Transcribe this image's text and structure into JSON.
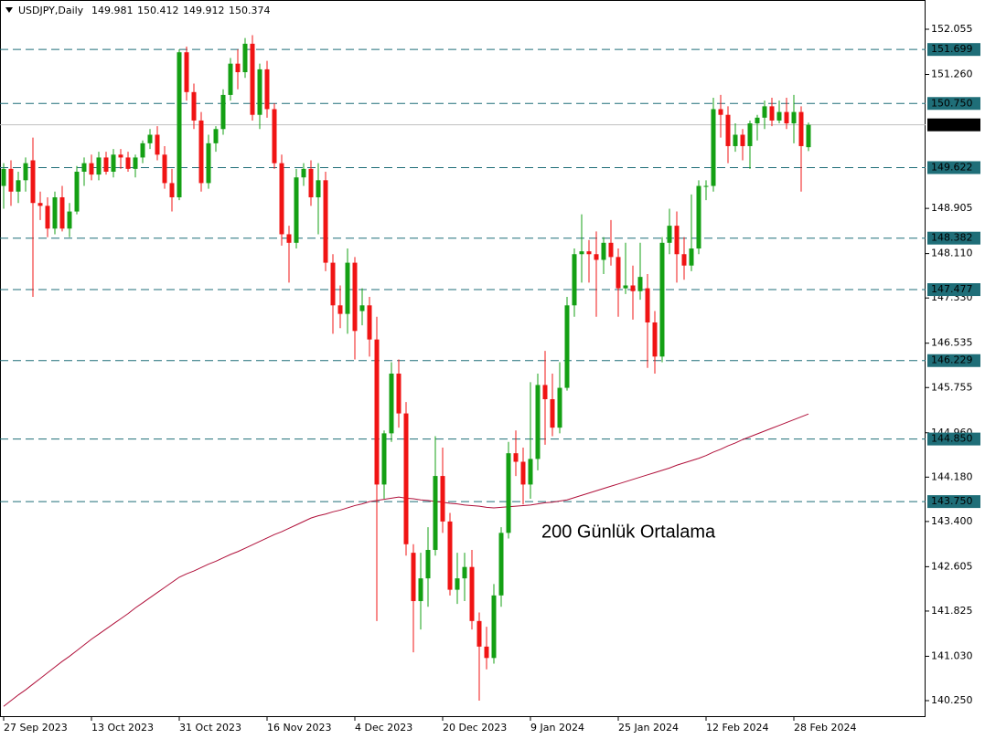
{
  "chart_data": {
    "type": "candlestick",
    "header": "USDJPY,Daily",
    "annotation": "200 Günlük Ortalama",
    "annotation_color": "#ff4a1a",
    "up_color": "#14a014",
    "down_color": "#f01414",
    "categories": [
      "27 Sep 2023",
      null,
      null,
      null,
      null,
      null,
      null,
      null,
      null,
      null,
      null,
      null,
      "13 Oct 2023",
      null,
      null,
      null,
      null,
      null,
      null,
      null,
      null,
      null,
      null,
      null,
      "31 Oct 2023",
      null,
      null,
      null,
      null,
      null,
      null,
      null,
      null,
      null,
      null,
      null,
      "16 Nov 2023",
      null,
      null,
      null,
      null,
      null,
      null,
      null,
      null,
      null,
      null,
      null,
      "4 Dec 2023",
      null,
      null,
      null,
      null,
      null,
      null,
      null,
      null,
      null,
      null,
      null,
      "20 Dec 2023",
      null,
      null,
      null,
      null,
      null,
      null,
      null,
      null,
      null,
      null,
      null,
      "9 Jan 2024",
      null,
      null,
      null,
      null,
      null,
      null,
      null,
      null,
      null,
      null,
      null,
      "25 Jan 2024",
      null,
      null,
      null,
      null,
      null,
      null,
      null,
      null,
      null,
      null,
      null,
      "12 Feb 2024",
      null,
      null,
      null,
      null,
      null,
      null,
      null,
      null,
      null,
      null,
      null,
      "28 Feb 2024",
      null,
      null
    ],
    "open": [
      149.3,
      149.6,
      149.2,
      149.4,
      149.75,
      149.0,
      148.95,
      148.55,
      149.1,
      148.55,
      148.85,
      149.55,
      149.7,
      149.5,
      149.8,
      149.55,
      149.85,
      149.8,
      149.6,
      149.8,
      150.05,
      150.2,
      149.85,
      149.35,
      149.1,
      151.65,
      150.95,
      150.45,
      149.35,
      150.05,
      150.3,
      150.9,
      151.45,
      151.3,
      151.8,
      150.55,
      151.35,
      150.65,
      149.7,
      148.45,
      148.3,
      149.45,
      149.6,
      149.1,
      149.4,
      147.95,
      147.2,
      147.05,
      147.95,
      147.1,
      147.2,
      146.6,
      144.05,
      144.95,
      146.0,
      145.3,
      142.85,
      142.0,
      142.4,
      142.9,
      144.2,
      143.4,
      142.2,
      142.4,
      142.6,
      141.65,
      141.2,
      141.0,
      142.1,
      143.2,
      144.6,
      144.45,
      144.05,
      144.5,
      145.8,
      145.55,
      145.05,
      145.75,
      147.2,
      148.1,
      148.15,
      148.1,
      148.0,
      148.3,
      148.05,
      147.5,
      147.55,
      147.45,
      147.5,
      146.9,
      146.3,
      148.3,
      148.6,
      148.1,
      147.9,
      148.2,
      149.3,
      149.3,
      150.65,
      150.55,
      150.0,
      150.2,
      150.0,
      150.4,
      150.5,
      150.7,
      150.45,
      150.6,
      150.4,
      150.6,
      149.981
    ],
    "high": [
      149.7,
      149.75,
      149.55,
      149.8,
      150.15,
      149.2,
      149.1,
      149.2,
      149.3,
      149.0,
      149.65,
      149.8,
      149.85,
      149.9,
      149.9,
      149.95,
      149.95,
      149.9,
      149.85,
      150.1,
      150.3,
      150.35,
      150.0,
      149.6,
      151.7,
      151.75,
      151.1,
      150.6,
      150.2,
      150.35,
      151.0,
      151.55,
      151.7,
      151.9,
      151.95,
      151.45,
      151.5,
      150.75,
      149.85,
      148.6,
      149.6,
      149.7,
      149.75,
      149.7,
      149.55,
      148.1,
      147.55,
      148.2,
      148.05,
      147.5,
      147.35,
      147.0,
      145.0,
      146.2,
      146.25,
      145.5,
      143.0,
      142.85,
      143.3,
      144.9,
      144.7,
      143.55,
      142.85,
      142.85,
      142.9,
      141.8,
      141.55,
      142.3,
      143.3,
      144.8,
      145.0,
      144.7,
      145.85,
      146.0,
      146.4,
      146.0,
      146.2,
      147.35,
      148.2,
      148.8,
      148.35,
      148.5,
      148.4,
      148.7,
      148.2,
      148.3,
      147.9,
      148.3,
      147.75,
      147.1,
      148.4,
      148.9,
      148.85,
      148.4,
      149.15,
      149.4,
      149.4,
      150.85,
      150.9,
      150.7,
      150.4,
      150.3,
      150.45,
      150.55,
      150.8,
      150.85,
      150.8,
      150.85,
      150.9,
      150.7,
      150.412
    ],
    "low": [
      148.9,
      148.95,
      149.0,
      149.2,
      147.35,
      148.7,
      148.4,
      148.45,
      148.5,
      148.4,
      148.8,
      149.3,
      149.4,
      149.4,
      149.5,
      149.45,
      149.6,
      149.55,
      149.45,
      149.7,
      149.95,
      149.75,
      149.25,
      148.85,
      149.05,
      150.8,
      150.3,
      149.2,
      149.25,
      149.9,
      150.2,
      150.8,
      151.0,
      151.2,
      150.45,
      150.3,
      150.5,
      149.6,
      148.25,
      147.6,
      148.2,
      149.3,
      148.95,
      148.45,
      147.8,
      146.7,
      146.8,
      146.7,
      146.25,
      146.85,
      146.3,
      141.65,
      143.8,
      144.8,
      145.05,
      142.8,
      141.1,
      141.5,
      141.9,
      142.8,
      143.2,
      142.1,
      141.95,
      142.0,
      141.5,
      140.25,
      140.8,
      140.9,
      141.9,
      143.1,
      144.2,
      143.7,
      143.8,
      144.3,
      144.75,
      144.9,
      144.95,
      145.7,
      147.0,
      147.6,
      147.6,
      147.0,
      147.75,
      147.9,
      147.0,
      147.4,
      146.95,
      147.3,
      146.1,
      146.0,
      146.2,
      148.1,
      147.6,
      147.65,
      147.8,
      148.1,
      149.05,
      149.2,
      150.15,
      149.7,
      149.9,
      149.75,
      149.6,
      150.1,
      150.3,
      150.35,
      150.4,
      150.3,
      150.05,
      149.2,
      149.912
    ],
    "close": [
      149.6,
      149.2,
      149.4,
      149.7,
      149.0,
      148.95,
      148.55,
      149.1,
      148.55,
      148.85,
      149.55,
      149.7,
      149.5,
      149.8,
      149.55,
      149.85,
      149.8,
      149.6,
      149.8,
      150.05,
      150.2,
      149.85,
      149.35,
      149.1,
      151.65,
      150.95,
      150.45,
      149.35,
      150.05,
      150.3,
      150.9,
      151.45,
      151.3,
      151.8,
      150.55,
      151.35,
      150.65,
      149.7,
      148.45,
      148.3,
      149.45,
      149.6,
      149.1,
      149.4,
      147.95,
      147.2,
      147.05,
      147.95,
      146.75,
      147.2,
      146.6,
      144.05,
      144.95,
      146.0,
      145.3,
      143.0,
      142.0,
      142.4,
      142.9,
      144.2,
      143.4,
      142.2,
      142.4,
      142.6,
      141.65,
      141.2,
      141.0,
      142.1,
      143.2,
      144.6,
      144.45,
      144.05,
      144.5,
      145.8,
      145.55,
      145.05,
      145.75,
      147.2,
      148.1,
      148.15,
      148.1,
      148.0,
      148.3,
      148.05,
      147.5,
      147.55,
      147.45,
      147.7,
      146.9,
      146.3,
      148.3,
      148.6,
      148.1,
      147.9,
      148.2,
      149.3,
      149.3,
      150.65,
      150.55,
      150.0,
      150.2,
      150.0,
      150.4,
      150.5,
      150.7,
      150.45,
      150.6,
      150.4,
      150.6,
      150.0,
      150.374
    ],
    "ma": {
      "color": "#b0103a",
      "values": [
        140.15,
        140.25,
        140.35,
        140.44,
        140.54,
        140.64,
        140.74,
        140.84,
        140.94,
        141.03,
        141.13,
        141.23,
        141.33,
        141.42,
        141.51,
        141.6,
        141.69,
        141.78,
        141.88,
        141.97,
        142.06,
        142.15,
        142.24,
        142.33,
        142.42,
        142.48,
        142.53,
        142.59,
        142.65,
        142.7,
        142.76,
        142.82,
        142.87,
        142.93,
        142.99,
        143.05,
        143.11,
        143.17,
        143.22,
        143.28,
        143.34,
        143.4,
        143.46,
        143.5,
        143.53,
        143.57,
        143.6,
        143.64,
        143.68,
        143.71,
        143.75,
        143.77,
        143.79,
        143.81,
        143.83,
        143.81,
        143.8,
        143.78,
        143.77,
        143.75,
        143.74,
        143.72,
        143.71,
        143.69,
        143.68,
        143.67,
        143.65,
        143.64,
        143.65,
        143.66,
        143.67,
        143.68,
        143.69,
        143.71,
        143.73,
        143.74,
        143.76,
        143.78,
        143.82,
        143.86,
        143.9,
        143.94,
        143.98,
        144.02,
        144.06,
        144.1,
        144.14,
        144.18,
        144.22,
        144.26,
        144.3,
        144.34,
        144.39,
        144.43,
        144.47,
        144.51,
        144.56,
        144.62,
        144.67,
        144.73,
        144.78,
        144.84,
        144.89,
        144.94,
        144.99,
        145.04,
        145.09,
        145.14,
        145.19,
        145.24,
        145.29
      ]
    },
    "levels": {
      "color": "#1f6e78",
      "values": [
        151.699,
        {
          "value": 150.75,
          "label": "150.750"
        },
        149.622,
        148.382,
        147.477,
        146.229,
        {
          "value": 144.85,
          "label": "144.850"
        },
        {
          "value": 143.75,
          "label": "143.750"
        }
      ]
    },
    "ylim": [
      139.961,
      152.537
    ],
    "yticks": [
      152.055,
      {
        "value": 151.26,
        "label": "151.260"
      },
      148.905,
      {
        "value": 148.11,
        "label": "148.110"
      },
      {
        "value": 147.33,
        "label": "147.330"
      },
      146.535,
      145.755,
      {
        "value": 144.96,
        "label": "144.960"
      },
      {
        "value": 144.18,
        "label": "144.180"
      },
      {
        "value": 143.4,
        "label": "143.400"
      },
      142.605,
      141.825,
      {
        "value": 141.03,
        "label": "141.030"
      },
      {
        "value": 140.25,
        "label": "140.250"
      }
    ]
  }
}
